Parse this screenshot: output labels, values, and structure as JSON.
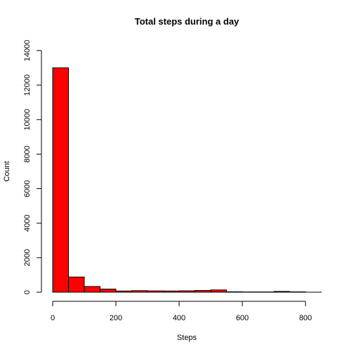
{
  "chart_data": {
    "type": "histogram",
    "title": "Total steps during a day",
    "xlabel": "Steps",
    "ylabel": "Count",
    "bar_color": "#ff0000",
    "border_color": "#000000",
    "bin_width": 50,
    "bins": [
      {
        "x_start": 0,
        "x_end": 50,
        "count": 13000
      },
      {
        "x_start": 50,
        "x_end": 100,
        "count": 880
      },
      {
        "x_start": 100,
        "x_end": 150,
        "count": 330
      },
      {
        "x_start": 150,
        "x_end": 200,
        "count": 180
      },
      {
        "x_start": 200,
        "x_end": 250,
        "count": 70
      },
      {
        "x_start": 250,
        "x_end": 300,
        "count": 90
      },
      {
        "x_start": 300,
        "x_end": 350,
        "count": 75
      },
      {
        "x_start": 350,
        "x_end": 400,
        "count": 70
      },
      {
        "x_start": 400,
        "x_end": 450,
        "count": 80
      },
      {
        "x_start": 450,
        "x_end": 500,
        "count": 100
      },
      {
        "x_start": 500,
        "x_end": 550,
        "count": 130
      },
      {
        "x_start": 550,
        "x_end": 600,
        "count": 25
      },
      {
        "x_start": 600,
        "x_end": 650,
        "count": 15
      },
      {
        "x_start": 650,
        "x_end": 700,
        "count": 15
      },
      {
        "x_start": 700,
        "x_end": 750,
        "count": 45
      },
      {
        "x_start": 750,
        "x_end": 800,
        "count": 20
      }
    ],
    "xlim": [
      0,
      850
    ],
    "ylim": [
      0,
      14000
    ],
    "x_ticks": [
      0,
      200,
      400,
      600,
      800
    ],
    "y_ticks": [
      0,
      2000,
      4000,
      6000,
      8000,
      10000,
      12000,
      14000
    ],
    "grid": false,
    "legend": "none"
  }
}
